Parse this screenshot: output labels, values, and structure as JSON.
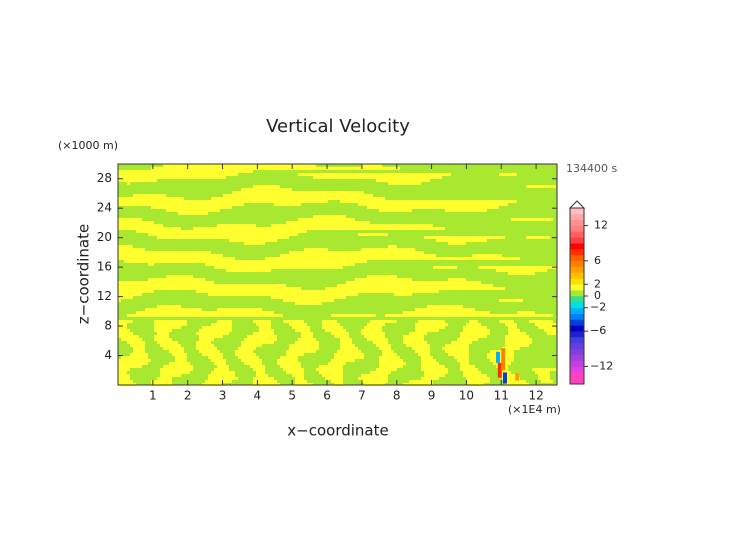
{
  "chart_data": {
    "type": "contour",
    "title": "Vertical Velocity",
    "x_label": "x−coordinate",
    "y_label": "z−coordinate",
    "x_unit": "(×1E4 m)",
    "y_unit": "(×1000 m)",
    "time_label": "134400 s",
    "xlim": [
      0,
      12.6
    ],
    "xticks": [
      1,
      2,
      3,
      4,
      5,
      6,
      7,
      8,
      9,
      10,
      11,
      12
    ],
    "ylim": [
      0,
      30
    ],
    "yticks": [
      4,
      8,
      12,
      16,
      20,
      24,
      28
    ],
    "colorbar": {
      "lim": [
        -15,
        15
      ],
      "ticks": [
        {
          "value": -12,
          "label": "−12"
        },
        {
          "value": -6,
          "label": "−6"
        },
        {
          "value": -2,
          "label": "−2"
        },
        0,
        2,
        6,
        12
      ],
      "colors": [
        "#ff40c0",
        "#ff40c0",
        "#e040e0",
        "#c040e0",
        "#a040e0",
        "#8040e0",
        "#6040e0",
        "#4040e0",
        "#2020d0",
        "#0000c0",
        "#0040e0",
        "#0080ff",
        "#00b0ff",
        "#00e0e0",
        "#30e090",
        "#a8e830",
        "#ffff30",
        "#ffe000",
        "#ffc000",
        "#ffa000",
        "#ff8000",
        "#ff6000",
        "#ff3000",
        "#ff0000",
        "#ff4040",
        "#ff6060",
        "#ff8080",
        "#ff9090",
        "#ffa8a8",
        "#ffc0c0"
      ]
    }
  }
}
